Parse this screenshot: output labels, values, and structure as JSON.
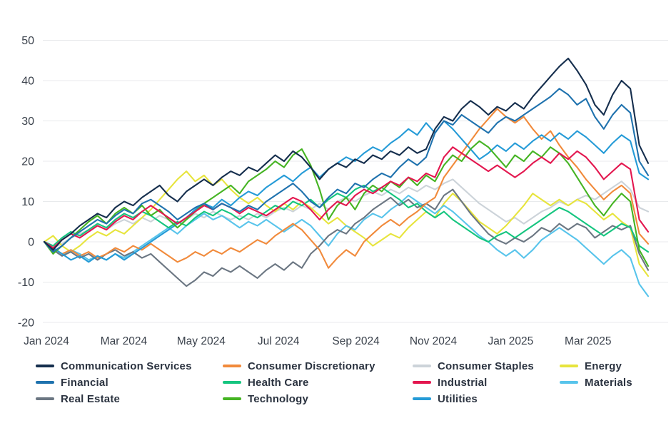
{
  "chart_data": {
    "type": "line",
    "title": "",
    "xlabel": "",
    "ylabel": "",
    "unit": "percent_return",
    "grid": "horizontal",
    "legend_position": "bottom",
    "x_tick_labels": [
      "Jan 2024",
      "Mar 2024",
      "May 2024",
      "Jul 2024",
      "Sep 2024",
      "Nov 2024",
      "Jan 2025",
      "Mar 2025"
    ],
    "y_ticks": [
      50,
      40,
      30,
      20,
      10,
      0,
      -10,
      -20
    ],
    "ylim": [
      -20,
      50
    ],
    "x_range": [
      "Jan 2024",
      "Apr 2025"
    ],
    "draw_order": [
      "Consumer Staples",
      "Energy",
      "Materials",
      "Real Estate",
      "Health Care",
      "Consumer Discretionary",
      "Utilities",
      "Technology",
      "Industrial",
      "Financial",
      "Communication Services"
    ],
    "series": [
      {
        "name": "Communication Services",
        "color": "#152e4d",
        "values": [
          0,
          -2,
          0.5,
          2,
          4,
          5.5,
          7,
          6,
          8.5,
          10,
          9,
          11,
          12.5,
          14,
          11.5,
          10,
          12.5,
          14,
          15.5,
          14,
          16,
          17.5,
          16.5,
          18.5,
          17.5,
          19.5,
          21.5,
          20,
          22.5,
          21,
          18.5,
          15.5,
          18,
          19.5,
          18.5,
          20.5,
          19.5,
          21.5,
          20.5,
          22.5,
          21.5,
          23.5,
          22,
          23,
          28,
          31,
          30,
          33,
          35,
          33.5,
          31.5,
          33.5,
          32.5,
          34.5,
          33,
          36,
          38.5,
          41,
          43.5,
          45.5,
          42.5,
          39,
          34,
          31.5,
          36.5,
          40,
          38,
          24,
          19.5
        ]
      },
      {
        "name": "Consumer Discretionary",
        "color": "#f18a3b",
        "values": [
          0,
          -1.5,
          -3,
          -2,
          -3.5,
          -2.5,
          -4,
          -3,
          -1.5,
          -2.5,
          -1,
          -2,
          -0.5,
          -2,
          -3.5,
          -5,
          -4,
          -2.5,
          -3.5,
          -2,
          -3,
          -1.5,
          -2.5,
          -1,
          0.5,
          -0.5,
          1.5,
          3,
          4.5,
          3,
          0.5,
          -2,
          -6.5,
          -4,
          -2,
          -3.5,
          0,
          2,
          4,
          5.5,
          4,
          6,
          7.5,
          9.5,
          11,
          16,
          19,
          22,
          25,
          28,
          30.5,
          33,
          31,
          29.5,
          31,
          28,
          25.5,
          27.5,
          24,
          21,
          18.5,
          15.5,
          13,
          10.5,
          12.5,
          14,
          12,
          2,
          -0.5
        ]
      },
      {
        "name": "Consumer Staples",
        "color": "#ccd3d9",
        "values": [
          0,
          -1.5,
          -0.5,
          1,
          2,
          3,
          4,
          3,
          4.5,
          5.5,
          4.5,
          6,
          5,
          6.5,
          5.5,
          4.5,
          5.5,
          7,
          6,
          7.5,
          6.5,
          5.5,
          6.5,
          5.5,
          7,
          6,
          7.5,
          8.5,
          7.5,
          9,
          8,
          9.5,
          8,
          10,
          11,
          10,
          11.5,
          12.5,
          11.5,
          13,
          12,
          13.5,
          12.5,
          14,
          13,
          14.5,
          15.5,
          13.5,
          11.5,
          9.5,
          8,
          6.5,
          5,
          6,
          4.5,
          6,
          7.5,
          8.5,
          10,
          9,
          10.5,
          11.5,
          10.5,
          12,
          13.5,
          15,
          13,
          8.5,
          7.5
        ]
      },
      {
        "name": "Energy",
        "color": "#e7e43d",
        "values": [
          0,
          1.5,
          -1,
          -2.5,
          -1,
          1,
          2.5,
          1.5,
          3,
          2,
          4,
          6,
          8,
          10.5,
          13,
          15.5,
          17.5,
          15,
          16.5,
          14,
          15.5,
          13,
          11,
          9.5,
          11,
          9,
          7.5,
          9.5,
          8,
          10,
          8.5,
          6.5,
          4.5,
          6,
          4,
          2.5,
          1,
          -1,
          0.5,
          2,
          1,
          3.5,
          5.5,
          7.5,
          6,
          9.5,
          12,
          10,
          7.5,
          5,
          3.5,
          2,
          4,
          6.5,
          9,
          12,
          10.5,
          9,
          10.5,
          9,
          10.5,
          9.5,
          7.5,
          5.5,
          7,
          5,
          3.5,
          -5.5,
          -8.5
        ]
      },
      {
        "name": "Financial",
        "color": "#1f72ae",
        "values": [
          0,
          -2.5,
          -1,
          1,
          2.5,
          4,
          5.5,
          4.5,
          6.5,
          8,
          7,
          9.5,
          10.5,
          9,
          7.5,
          5.5,
          7,
          8.5,
          9.5,
          8,
          9.5,
          8.5,
          7.5,
          9,
          8,
          10,
          11.5,
          13,
          14.5,
          12.5,
          10,
          8.5,
          11,
          13,
          12,
          14.5,
          13.5,
          15.5,
          17,
          16,
          18.5,
          20.5,
          19,
          21,
          27,
          30,
          29,
          31.5,
          30,
          28.5,
          27,
          29.5,
          31,
          30,
          31.5,
          33,
          34.5,
          36,
          38,
          36.5,
          34,
          35.5,
          31,
          28,
          31.5,
          34,
          32,
          20,
          16.5
        ]
      },
      {
        "name": "Health Care",
        "color": "#15c57f",
        "values": [
          0,
          -1,
          1,
          2.5,
          1.5,
          3,
          4.5,
          3.5,
          5.5,
          7,
          6,
          7.5,
          6.5,
          5,
          3.5,
          5,
          4,
          6,
          7.5,
          6.5,
          8,
          7,
          5.5,
          7,
          6,
          7.5,
          9,
          8,
          10,
          9,
          10.5,
          8.5,
          10.5,
          12,
          11,
          13,
          14,
          12.5,
          13.5,
          12,
          10.5,
          8.5,
          9.5,
          7.5,
          6,
          7.5,
          5.5,
          4,
          2.5,
          1,
          0,
          1.5,
          2.5,
          1,
          2.5,
          4,
          5.5,
          7,
          8.5,
          7.5,
          6,
          4.5,
          3,
          1.5,
          3,
          4.5,
          3.5,
          -1,
          -2.5
        ]
      },
      {
        "name": "Industrial",
        "color": "#e3174f",
        "values": [
          0,
          -1.5,
          0.5,
          2,
          1,
          2.5,
          4,
          3,
          5,
          6.5,
          5.5,
          7.5,
          9,
          7.5,
          6,
          4.5,
          6,
          7.5,
          9,
          8,
          9.5,
          8.5,
          7,
          8.5,
          7.5,
          6.5,
          8,
          9.5,
          11,
          10,
          8,
          5.5,
          8,
          10,
          9,
          11.5,
          13,
          12,
          13.5,
          15,
          14,
          16,
          15,
          17,
          16,
          21,
          23.5,
          22,
          20.5,
          19,
          17.5,
          19,
          17.5,
          16,
          17.5,
          19.5,
          21,
          19.5,
          22,
          20.5,
          22.5,
          21,
          18.5,
          15.5,
          17.5,
          19.5,
          18,
          5.5,
          2.5
        ]
      },
      {
        "name": "Materials",
        "color": "#58c4eb",
        "values": [
          0,
          -2,
          -3.5,
          -2,
          -3,
          -4.5,
          -3.5,
          -4.5,
          -3,
          -4,
          -2.5,
          -1,
          0.5,
          2,
          3.5,
          2,
          4,
          5.5,
          7,
          5.5,
          6.5,
          5,
          3.5,
          5,
          4,
          5.5,
          4,
          2.5,
          4,
          5.5,
          4,
          1.5,
          -1,
          2,
          4,
          3,
          5.5,
          7,
          6,
          8,
          9.5,
          11.5,
          10,
          8.5,
          7,
          9,
          7.5,
          5.5,
          3.5,
          1.5,
          0,
          -2,
          -3.5,
          -2,
          -4,
          -2,
          0.5,
          2,
          3.5,
          2,
          0.5,
          -1.5,
          -3.5,
          -5.5,
          -3.5,
          -2,
          -4,
          -10.5,
          -13.5
        ]
      },
      {
        "name": "Real Estate",
        "color": "#6b7682",
        "values": [
          0,
          -2,
          -3.5,
          -2.5,
          -4,
          -3,
          -4.5,
          -3,
          -2,
          -3.5,
          -2.5,
          -4,
          -3,
          -5,
          -7,
          -9,
          -11,
          -9.5,
          -7.5,
          -8.5,
          -6.5,
          -7.5,
          -6,
          -7.5,
          -9,
          -7,
          -5.5,
          -7,
          -5,
          -6.5,
          -3,
          -1,
          1.5,
          3,
          2,
          4.5,
          6,
          8,
          9.5,
          11,
          9,
          10.5,
          8.5,
          9.5,
          8,
          11.5,
          13,
          10,
          7,
          4.5,
          2,
          0.5,
          -0.5,
          1,
          0,
          1.5,
          3.5,
          2.5,
          4.5,
          3,
          4.5,
          3.5,
          1,
          2.5,
          4,
          3,
          4,
          -3,
          -7
        ]
      },
      {
        "name": "Technology",
        "color": "#45b423",
        "values": [
          0,
          -3,
          -1,
          1,
          3,
          5,
          6.5,
          4.5,
          7,
          8.5,
          7,
          9,
          6.5,
          8,
          5.5,
          3.5,
          5.5,
          7.5,
          9.5,
          11,
          12.5,
          14,
          12,
          15,
          16.5,
          18,
          20,
          18.5,
          21.5,
          23,
          19,
          13,
          5.5,
          9,
          11,
          8,
          12,
          14,
          12.5,
          15,
          13.5,
          16,
          14,
          16.5,
          15,
          19,
          21.5,
          20,
          23,
          25,
          23.5,
          21,
          18.5,
          21.5,
          20,
          22.5,
          21,
          23.5,
          22,
          19.5,
          16,
          12.5,
          9,
          6.5,
          9.5,
          12,
          10,
          -2,
          -6
        ]
      },
      {
        "name": "Utilities",
        "color": "#259bd7",
        "values": [
          0,
          -1.5,
          -3,
          -4.5,
          -3.5,
          -5,
          -3.5,
          -4.5,
          -3,
          -4.5,
          -3,
          -1.5,
          0,
          1.5,
          3,
          4.5,
          6,
          8,
          9.5,
          8.5,
          10.5,
          9,
          11,
          12.5,
          11.5,
          13.5,
          15,
          16.5,
          15,
          17,
          18.5,
          16,
          18,
          19.5,
          21,
          20,
          22,
          23.5,
          22.5,
          24.5,
          26,
          28,
          26.5,
          29.5,
          27,
          30,
          28,
          25.5,
          23,
          20.5,
          22,
          24,
          22.5,
          24.5,
          23,
          25,
          26.5,
          25,
          27,
          25.5,
          27.5,
          26,
          24,
          22,
          24.5,
          26.5,
          25,
          17,
          15.5
        ]
      }
    ]
  },
  "style": {
    "grid_color": "#e8eaec",
    "axis_text_color": "#3b424c",
    "legend_text_color": "#2b3340",
    "background": "#ffffff"
  }
}
